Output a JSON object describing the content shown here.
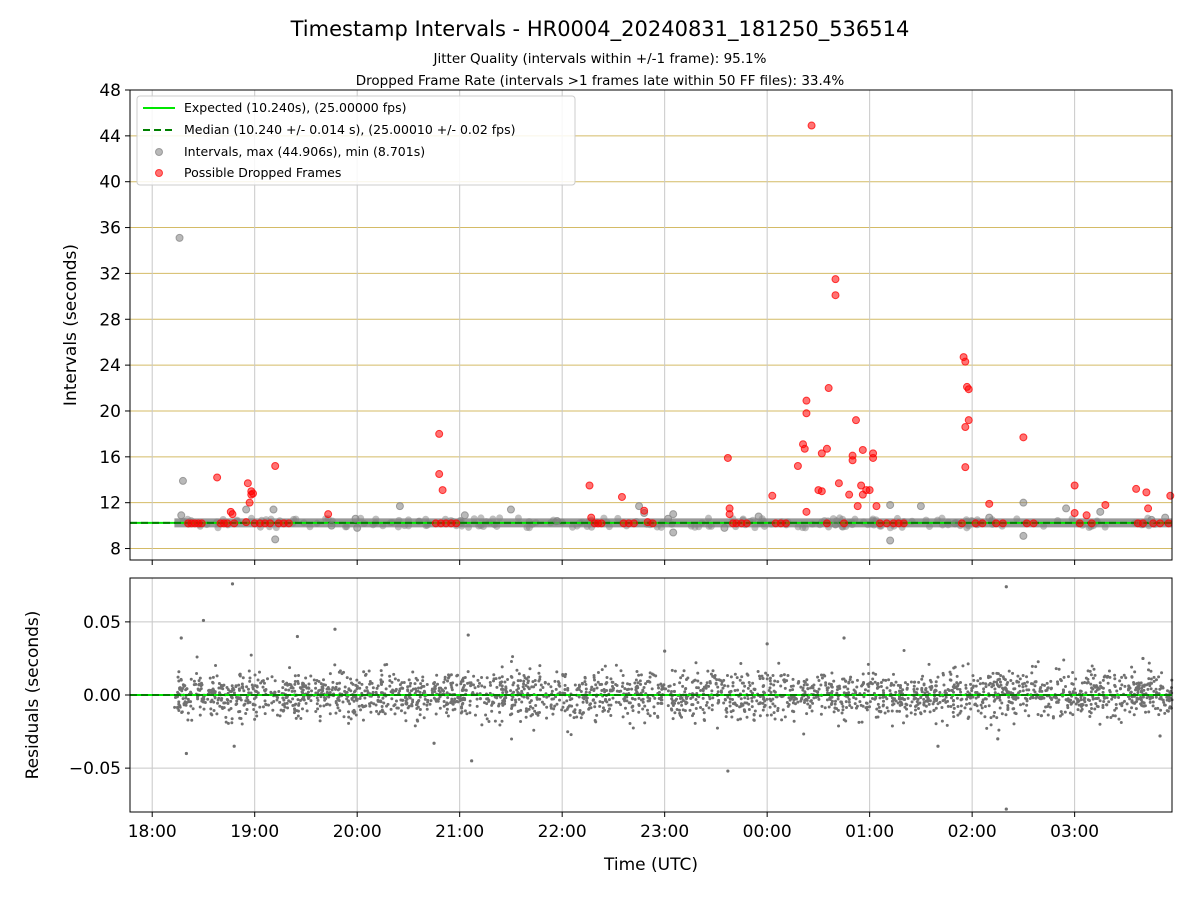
{
  "figure": {
    "title": "Timestamp Intervals - HR0004_20240831_181250_536514",
    "subtitle_1": "Jitter Quality (intervals within +/-1 frame): 95.1%",
    "subtitle_2": "Dropped Frame Rate (intervals >1 frames late within 50 FF files): 33.4%"
  },
  "colors": {
    "expected": "#00e600",
    "median": "#008000",
    "intervals": "#808080",
    "dropped": "#ff0000",
    "hgrid": "#d4bb66",
    "vgrid": "#c8c8c8",
    "residuals": "#707070"
  },
  "chart_data": [
    {
      "type": "scatter",
      "ylabel": "Intervals (seconds)",
      "xlabel": "",
      "xlim": [
        "17:47",
        "03:57"
      ],
      "ylim": [
        7,
        48
      ],
      "yticks": [
        8,
        12,
        16,
        20,
        24,
        28,
        32,
        36,
        40,
        44,
        48
      ],
      "grid": true,
      "legend_position": "top-left",
      "legend": [
        "Expected (10.240s), (25.00000 fps)",
        "Median (10.240 +/- 0.014 s), (25.00010 +/- 0.02 fps)",
        "Intervals, max (44.906s), min (8.701s)",
        "Possible Dropped Frames"
      ],
      "series": [
        {
          "name": "Expected (10.240s), (25.00000 fps)",
          "y": 10.24
        },
        {
          "name": "Median (10.240 +/- 0.014 s), (25.00010 +/- 0.02 fps)",
          "y": 10.24
        },
        {
          "name": "Intervals, max (44.906s), min (8.701s)",
          "x_start": "18:13",
          "x_end": "03:57",
          "y_typical": 10.24,
          "outliers": [
            [
              "18:16",
              35.1
            ],
            [
              "18:18",
              13.9
            ],
            [
              "18:17",
              10.9
            ],
            [
              "18:55",
              11.4
            ],
            [
              "19:11",
              11.4
            ],
            [
              "19:12",
              8.8
            ],
            [
              "19:45",
              10.0
            ],
            [
              "19:59",
              10.6
            ],
            [
              "20:00",
              9.8
            ],
            [
              "20:25",
              11.7
            ],
            [
              "21:03",
              10.9
            ],
            [
              "21:30",
              11.4
            ],
            [
              "21:57",
              10.4
            ],
            [
              "22:45",
              11.7
            ],
            [
              "22:48",
              11.1
            ],
            [
              "23:02",
              10.6
            ],
            [
              "23:05",
              11.0
            ],
            [
              "23:05",
              9.4
            ],
            [
              "23:35",
              9.8
            ],
            [
              "23:55",
              10.8
            ],
            [
              "00:40",
              10.1
            ],
            [
              "01:12",
              8.7
            ],
            [
              "01:12",
              11.8
            ],
            [
              "01:30",
              11.7
            ],
            [
              "01:50",
              10.2
            ],
            [
              "02:10",
              10.7
            ],
            [
              "02:30",
              12.0
            ],
            [
              "02:30",
              9.1
            ],
            [
              "02:55",
              11.5
            ],
            [
              "03:15",
              11.2
            ],
            [
              "03:38",
              10.2
            ],
            [
              "03:45",
              10.5
            ],
            [
              "03:53",
              10.7
            ]
          ]
        },
        {
          "name": "Possible Dropped Frames",
          "points": [
            [
              "18:21",
              10.2
            ],
            [
              "18:23",
              10.2
            ],
            [
              "18:25",
              10.2
            ],
            [
              "18:27",
              10.2
            ],
            [
              "18:29",
              10.2
            ],
            [
              "18:38",
              14.2
            ],
            [
              "18:40",
              10.2
            ],
            [
              "18:42",
              10.2
            ],
            [
              "18:44",
              10.2
            ],
            [
              "18:46",
              11.2
            ],
            [
              "18:47",
              11.0
            ],
            [
              "18:48",
              10.2
            ],
            [
              "18:56",
              13.7
            ],
            [
              "18:58",
              12.7
            ],
            [
              "18:58",
              13.0
            ],
            [
              "18:59",
              12.8
            ],
            [
              "18:57",
              12.0
            ],
            [
              "18:55",
              10.3
            ],
            [
              "19:00",
              10.2
            ],
            [
              "19:03",
              10.2
            ],
            [
              "19:06",
              10.2
            ],
            [
              "19:09",
              10.2
            ],
            [
              "19:12",
              15.2
            ],
            [
              "19:14",
              10.2
            ],
            [
              "19:17",
              10.2
            ],
            [
              "19:20",
              10.2
            ],
            [
              "19:43",
              11.0
            ],
            [
              "20:48",
              18.0
            ],
            [
              "20:48",
              14.5
            ],
            [
              "20:50",
              13.1
            ],
            [
              "20:46",
              10.2
            ],
            [
              "20:49",
              10.2
            ],
            [
              "20:52",
              10.2
            ],
            [
              "20:55",
              10.2
            ],
            [
              "20:58",
              10.2
            ],
            [
              "22:16",
              13.5
            ],
            [
              "22:17",
              10.7
            ],
            [
              "22:19",
              10.2
            ],
            [
              "22:21",
              10.2
            ],
            [
              "22:23",
              10.2
            ],
            [
              "22:35",
              12.5
            ],
            [
              "22:36",
              10.2
            ],
            [
              "22:39",
              10.2
            ],
            [
              "22:42",
              10.2
            ],
            [
              "22:48",
              11.3
            ],
            [
              "22:50",
              10.3
            ],
            [
              "22:53",
              10.2
            ],
            [
              "23:37",
              15.9
            ],
            [
              "23:38",
              11.5
            ],
            [
              "23:38",
              11.0
            ],
            [
              "23:40",
              10.2
            ],
            [
              "23:42",
              10.2
            ],
            [
              "23:45",
              10.2
            ],
            [
              "23:48",
              10.2
            ],
            [
              "00:03",
              12.6
            ],
            [
              "00:05",
              10.2
            ],
            [
              "00:08",
              10.2
            ],
            [
              "00:11",
              10.2
            ],
            [
              "00:18",
              15.2
            ],
            [
              "00:21",
              17.1
            ],
            [
              "00:22",
              16.7
            ],
            [
              "00:23",
              20.9
            ],
            [
              "00:23",
              19.8
            ],
            [
              "00:23",
              11.2
            ],
            [
              "00:26",
              44.9
            ],
            [
              "00:30",
              13.1
            ],
            [
              "00:32",
              16.3
            ],
            [
              "00:32",
              13.0
            ],
            [
              "00:35",
              16.7
            ],
            [
              "00:36",
              22.0
            ],
            [
              "00:40",
              31.5
            ],
            [
              "00:40",
              30.1
            ],
            [
              "00:42",
              13.7
            ],
            [
              "00:48",
              12.7
            ],
            [
              "00:50",
              15.7
            ],
            [
              "00:50",
              16.1
            ],
            [
              "00:52",
              19.2
            ],
            [
              "00:53",
              11.7
            ],
            [
              "00:55",
              13.5
            ],
            [
              "00:56",
              12.7
            ],
            [
              "00:56",
              16.6
            ],
            [
              "00:58",
              13.1
            ],
            [
              "01:00",
              13.1
            ],
            [
              "01:02",
              16.3
            ],
            [
              "01:02",
              15.9
            ],
            [
              "01:04",
              11.7
            ],
            [
              "00:35",
              10.2
            ],
            [
              "00:45",
              10.2
            ],
            [
              "01:06",
              10.2
            ],
            [
              "01:10",
              10.2
            ],
            [
              "01:14",
              10.2
            ],
            [
              "01:17",
              10.2
            ],
            [
              "01:20",
              10.2
            ],
            [
              "01:55",
              24.7
            ],
            [
              "01:56",
              24.3
            ],
            [
              "01:57",
              22.1
            ],
            [
              "01:58",
              21.9
            ],
            [
              "01:58",
              19.2
            ],
            [
              "01:56",
              18.6
            ],
            [
              "01:56",
              15.1
            ],
            [
              "01:54",
              10.2
            ],
            [
              "02:02",
              10.2
            ],
            [
              "02:06",
              10.2
            ],
            [
              "02:10",
              11.9
            ],
            [
              "02:14",
              10.2
            ],
            [
              "02:18",
              10.2
            ],
            [
              "02:30",
              17.7
            ],
            [
              "02:32",
              10.2
            ],
            [
              "02:36",
              10.2
            ],
            [
              "03:00",
              13.5
            ],
            [
              "03:00",
              11.1
            ],
            [
              "03:03",
              10.2
            ],
            [
              "03:07",
              10.9
            ],
            [
              "03:10",
              10.2
            ],
            [
              "03:18",
              11.8
            ],
            [
              "03:36",
              13.2
            ],
            [
              "03:42",
              12.9
            ],
            [
              "03:43",
              11.5
            ],
            [
              "03:37",
              10.2
            ],
            [
              "03:40",
              10.2
            ],
            [
              "03:46",
              10.2
            ],
            [
              "03:50",
              10.2
            ],
            [
              "03:56",
              12.6
            ],
            [
              "03:55",
              10.2
            ]
          ]
        }
      ]
    },
    {
      "type": "scatter",
      "ylabel": "Residuals (seconds)",
      "xlabel": "Time (UTC)",
      "xlim": [
        "17:47",
        "03:57"
      ],
      "ylim": [
        -0.08,
        0.08
      ],
      "yticks": [
        0.05,
        0.0,
        -0.05
      ],
      "ytick_labels": [
        "0.05",
        "0.00",
        "−0.05"
      ],
      "xticks": [
        "18:00",
        "19:00",
        "20:00",
        "21:00",
        "22:00",
        "23:00",
        "00:00",
        "01:00",
        "02:00",
        "03:00"
      ],
      "grid": true,
      "series": [
        {
          "name": "",
          "y": 0.0
        },
        {
          "name": "",
          "x_start": "18:13",
          "x_end": "03:57",
          "spread_sd": 0.008,
          "outliers": [
            [
              "18:47",
              0.076
            ],
            [
              "18:30",
              0.051
            ],
            [
              "19:47",
              0.045
            ],
            [
              "02:20",
              0.074
            ],
            [
              "02:20",
              -0.078
            ],
            [
              "23:37",
              -0.052
            ],
            [
              "21:05",
              0.041
            ],
            [
              "21:07",
              -0.045
            ],
            [
              "18:17",
              0.039
            ],
            [
              "19:25",
              0.04
            ],
            [
              "00:00",
              0.035
            ],
            [
              "00:45",
              0.039
            ],
            [
              "18:20",
              -0.04
            ],
            [
              "18:48",
              -0.035
            ],
            [
              "20:45",
              -0.033
            ],
            [
              "23:00",
              0.03
            ],
            [
              "01:40",
              -0.035
            ],
            [
              "02:15",
              -0.03
            ],
            [
              "03:40",
              0.025
            ],
            [
              "03:50",
              -0.028
            ]
          ]
        }
      ]
    }
  ]
}
